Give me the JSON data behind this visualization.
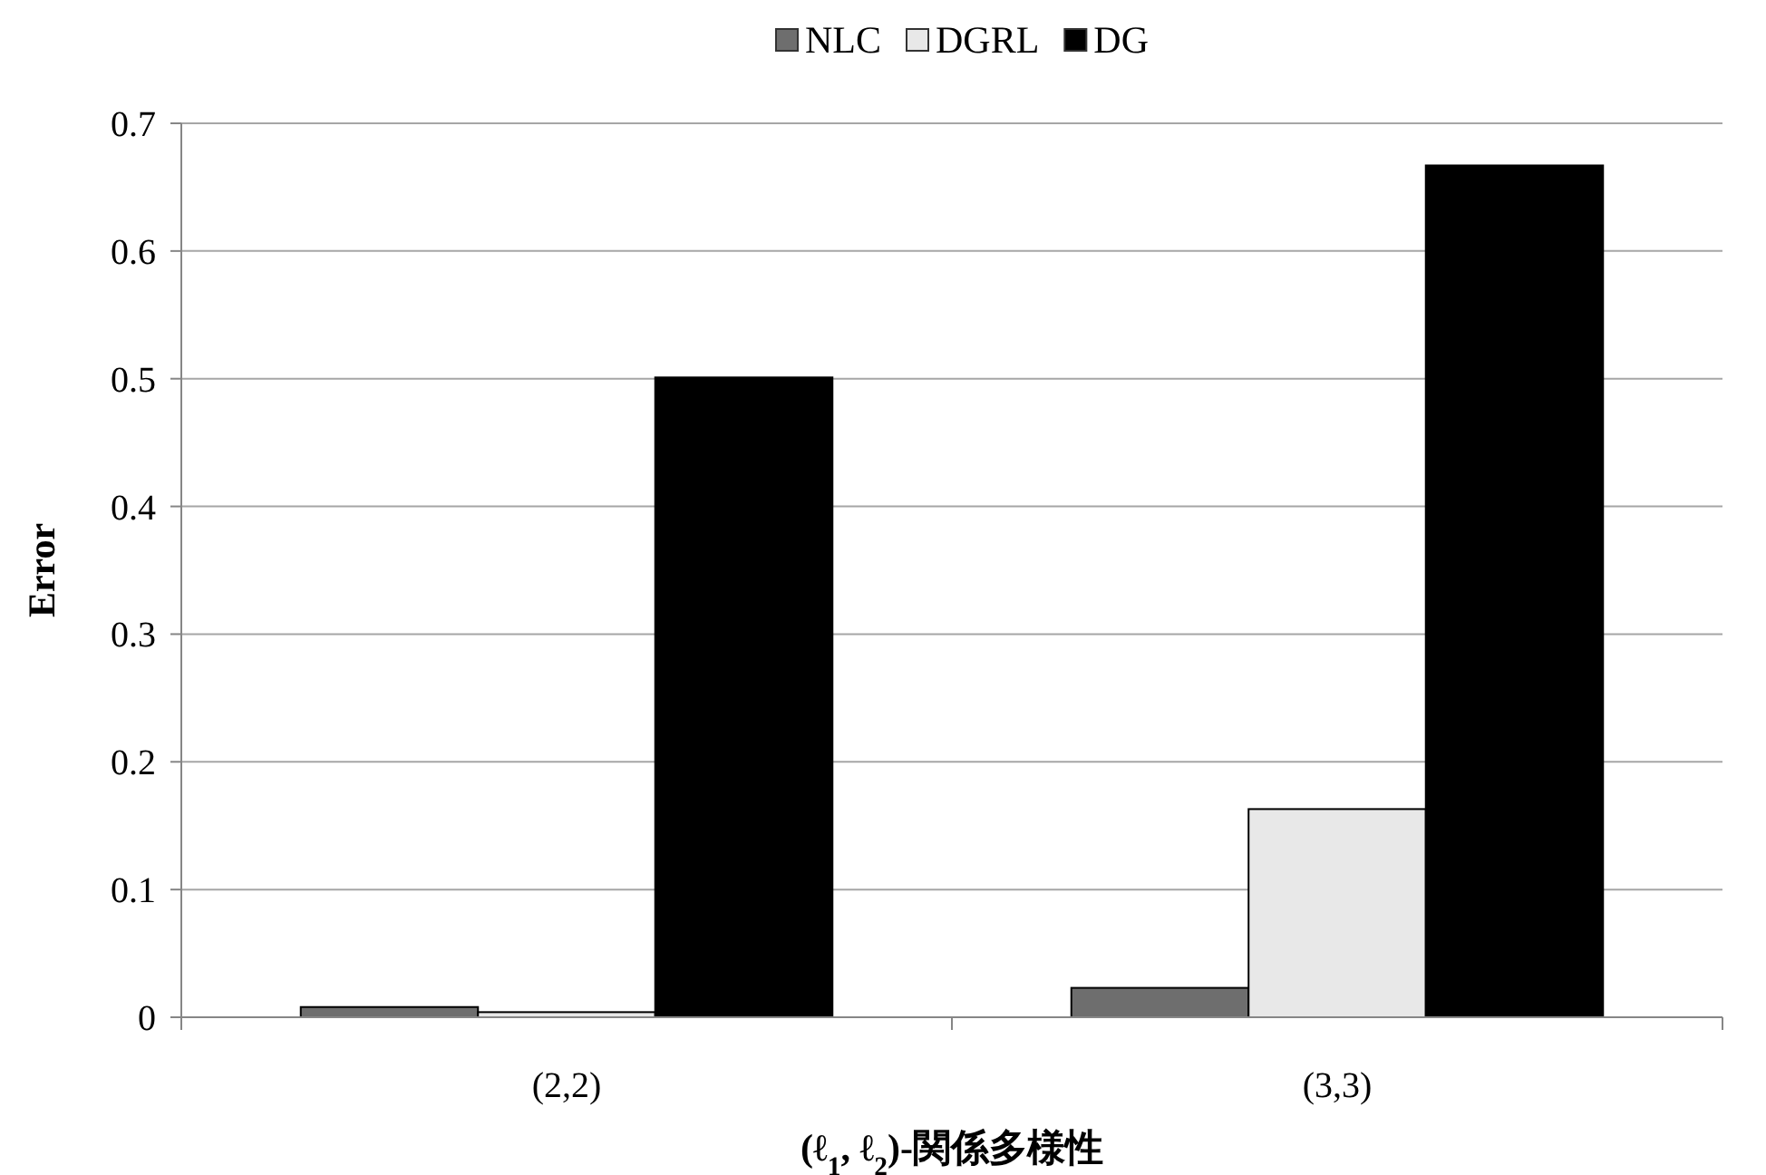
{
  "chart_data": {
    "type": "bar",
    "xlabel": "(ℓ$_{1}$, ℓ$_{2}$)-関係多様性",
    "ylabel": "Error",
    "categories": [
      "(2,2)",
      "(3,3)"
    ],
    "series": [
      {
        "name": "NLC",
        "color": "#6e6e6e",
        "values": [
          0.008,
          0.023
        ]
      },
      {
        "name": "DGRL",
        "color": "#e8e8e8",
        "values": [
          0.004,
          0.163
        ]
      },
      {
        "name": "DG",
        "color": "#000000",
        "values": [
          0.501,
          0.667
        ]
      }
    ],
    "ylim": [
      0,
      0.7
    ],
    "yticks": [
      0,
      0.1,
      0.2,
      0.3,
      0.4,
      0.5,
      0.6,
      0.7
    ],
    "grid": "y",
    "legend": "top"
  }
}
